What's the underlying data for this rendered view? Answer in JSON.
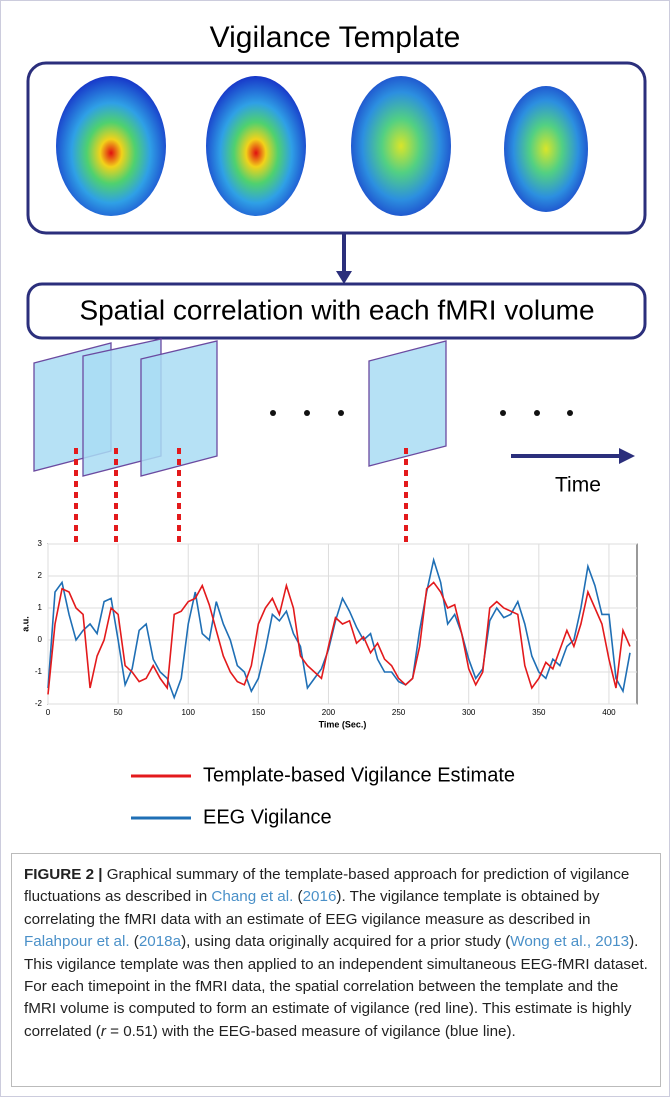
{
  "figure": {
    "template_title": "Vigilance Template",
    "correlation_box": "Spatial correlation with each fMRI volume",
    "time_label": "Time",
    "chart_data": {
      "type": "line",
      "xlabel": "Time (Sec.)",
      "ylabel": "a.u.",
      "xlim": [
        0,
        420
      ],
      "ylim": [
        -2,
        3
      ],
      "xticks": [
        0,
        50,
        100,
        150,
        200,
        250,
        300,
        350,
        400
      ],
      "yticks": [
        -2,
        -1,
        0,
        1,
        2,
        3
      ],
      "grid": true,
      "x": [
        0,
        5,
        10,
        15,
        20,
        25,
        30,
        35,
        40,
        45,
        50,
        55,
        60,
        65,
        70,
        75,
        80,
        85,
        90,
        95,
        100,
        105,
        110,
        115,
        120,
        125,
        130,
        135,
        140,
        145,
        150,
        155,
        160,
        165,
        170,
        175,
        180,
        185,
        190,
        195,
        200,
        205,
        210,
        215,
        220,
        225,
        230,
        235,
        240,
        245,
        250,
        255,
        260,
        265,
        270,
        275,
        280,
        285,
        290,
        295,
        300,
        305,
        310,
        315,
        320,
        325,
        330,
        335,
        340,
        345,
        350,
        355,
        360,
        365,
        370,
        375,
        380,
        385,
        390,
        395,
        400,
        405,
        410,
        415
      ],
      "series": [
        {
          "name": "EEG Vigilance",
          "color": "#1f6fb5",
          "values": [
            -1.5,
            1.5,
            1.8,
            0.8,
            0.0,
            0.3,
            0.5,
            0.2,
            1.2,
            1.3,
            0.0,
            -1.4,
            -0.9,
            0.3,
            0.5,
            -0.6,
            -1.0,
            -1.2,
            -1.8,
            -1.2,
            0.5,
            1.5,
            0.2,
            0.0,
            1.2,
            0.5,
            0.0,
            -0.8,
            -1.0,
            -1.6,
            -1.2,
            -0.3,
            0.8,
            0.6,
            0.9,
            0.2,
            -0.2,
            -1.5,
            -1.2,
            -0.9,
            -0.3,
            0.6,
            1.3,
            0.9,
            0.4,
            0.0,
            0.2,
            -0.6,
            -1.0,
            -1.0,
            -1.3,
            -1.4,
            -1.2,
            0.3,
            1.5,
            2.5,
            1.8,
            0.5,
            0.8,
            0.2,
            -0.6,
            -1.2,
            -0.9,
            0.6,
            1.0,
            0.7,
            0.8,
            1.2,
            0.5,
            -0.5,
            -1.0,
            -1.2,
            -0.6,
            -0.8,
            -0.2,
            0.0,
            1.0,
            2.3,
            1.7,
            0.8,
            0.8,
            -1.2,
            -1.6,
            -0.4
          ]
        },
        {
          "name": "Template-based Vigilance Estimate",
          "color": "#e31a1c",
          "values": [
            -1.7,
            0.5,
            1.6,
            1.5,
            1.0,
            0.8,
            -1.5,
            -0.5,
            0.0,
            1.0,
            0.8,
            -0.8,
            -1.0,
            -1.3,
            -1.2,
            -0.8,
            -1.2,
            -1.5,
            0.8,
            0.9,
            1.2,
            1.3,
            1.7,
            1.1,
            0.3,
            -0.5,
            -1.0,
            -1.3,
            -1.4,
            -0.8,
            0.5,
            1.0,
            1.3,
            0.8,
            1.7,
            1.0,
            -0.5,
            -0.8,
            -1.0,
            -1.2,
            -0.2,
            0.7,
            0.5,
            0.6,
            -0.1,
            0.1,
            -0.4,
            -0.1,
            -0.6,
            -0.8,
            -1.2,
            -1.4,
            -1.2,
            -0.2,
            1.6,
            1.8,
            1.5,
            1.0,
            1.1,
            0.2,
            -0.9,
            -1.4,
            -1.0,
            1.0,
            1.2,
            1.0,
            0.9,
            0.8,
            -0.8,
            -1.5,
            -1.2,
            -0.7,
            -0.9,
            -0.3,
            0.3,
            -0.2,
            0.5,
            1.5,
            1.0,
            0.5,
            -0.6,
            -1.5,
            0.3,
            -0.2
          ]
        }
      ]
    }
  },
  "caption": {
    "label": "FIGURE 2 |",
    "parts": [
      " Graphical summary of the template-based approach for prediction of vigilance fluctuations as described in ",
      "Chang et al.",
      " (",
      "2016",
      "). The vigilance template is obtained by correlating the fMRI data with an estimate of EEG vigilance measure as described in ",
      "Falahpour et al.",
      " (",
      "2018a",
      "), using data originally acquired for a prior study (",
      "Wong et al., 2013",
      "). This vigilance template was then applied to an independent simultaneous EEG-fMRI dataset. For each timepoint in the fMRI data, the spatial correlation between the template and the fMRI volume is computed to form an estimate of vigilance (red line). This estimate is highly correlated (",
      "r",
      " = 0.51) with the EEG-based measure of vigilance (blue line)."
    ]
  }
}
